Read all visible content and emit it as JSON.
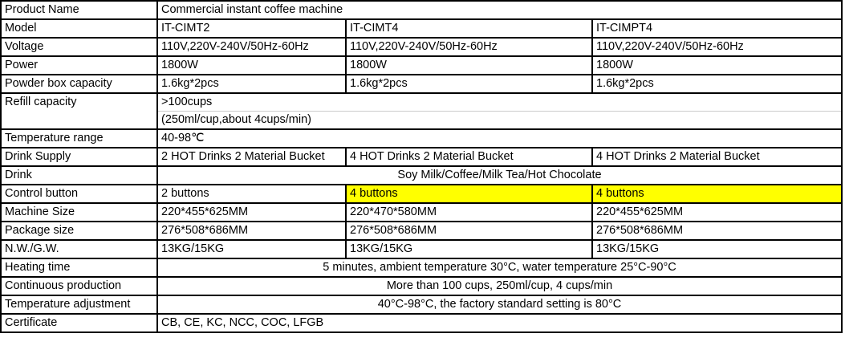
{
  "highlight_color": "#ffff00",
  "rows": [
    {
      "label": "Product Name",
      "cells": [
        {
          "text": "Commercial instant coffee machine",
          "span": 3
        }
      ]
    },
    {
      "label": "Model",
      "cells": [
        {
          "text": "IT-CIMT2"
        },
        {
          "text": "IT-CIMT4"
        },
        {
          "text": "IT-CIMPT4"
        }
      ]
    },
    {
      "label": "Voltage",
      "cells": [
        {
          "text": "110V,220V-240V/50Hz-60Hz"
        },
        {
          "text": "110V,220V-240V/50Hz-60Hz"
        },
        {
          "text": "110V,220V-240V/50Hz-60Hz"
        }
      ]
    },
    {
      "label": "Power",
      "cells": [
        {
          "text": "1800W"
        },
        {
          "text": "1800W"
        },
        {
          "text": "1800W"
        }
      ]
    },
    {
      "label": "Powder box capacity",
      "cells": [
        {
          "text": "1.6kg*2pcs"
        },
        {
          "text": "1.6kg*2pcs"
        },
        {
          "text": "1.6kg*2pcs"
        }
      ]
    },
    {
      "label": "Refill capacity",
      "cells": [
        {
          "text": ">100cups",
          "span": 3
        }
      ],
      "extra": "(250ml/cup,about 4cups/min)"
    },
    {
      "label": "Temperature range",
      "cells": [
        {
          "text": "40-98℃",
          "span": 3
        }
      ]
    },
    {
      "label": "Drink Supply",
      "cells": [
        {
          "text": "2 HOT Drinks 2 Material Bucket"
        },
        {
          "text": "4 HOT Drinks 2 Material Bucket"
        },
        {
          "text": "4 HOT Drinks 2 Material Bucket"
        }
      ]
    },
    {
      "label": "Drink",
      "cells": [
        {
          "text": "Soy Milk/Coffee/Milk Tea/Hot Chocolate",
          "span": 3,
          "center": true
        }
      ]
    },
    {
      "label": "Control button",
      "cells": [
        {
          "text": "2 buttons"
        },
        {
          "text": "4 buttons",
          "highlight": true
        },
        {
          "text": "4 buttons",
          "highlight": true
        }
      ]
    },
    {
      "label": "Machine Size",
      "cells": [
        {
          "text": "220*455*625MM"
        },
        {
          "text": "220*470*580MM"
        },
        {
          "text": "220*455*625MM"
        }
      ]
    },
    {
      "label": "Package size",
      "cells": [
        {
          "text": "276*508*686MM"
        },
        {
          "text": "276*508*686MM"
        },
        {
          "text": "276*508*686MM"
        }
      ]
    },
    {
      "label": "N.W./G.W.",
      "cells": [
        {
          "text": "13KG/15KG"
        },
        {
          "text": "13KG/15KG"
        },
        {
          "text": "13KG/15KG"
        }
      ]
    },
    {
      "label": "Heating time",
      "cells": [
        {
          "text": "5 minutes, ambient temperature 30°C, water temperature 25°C-90°C",
          "span": 3,
          "center": true
        }
      ]
    },
    {
      "label": "Continuous production",
      "cells": [
        {
          "text": "More than 100 cups, 250ml/cup, 4 cups/min",
          "span": 3,
          "center": true
        }
      ]
    },
    {
      "label": "Temperature adjustment",
      "cells": [
        {
          "text": "40°C-98°C, the factory standard setting is 80°C",
          "span": 3,
          "center": true
        }
      ]
    },
    {
      "label": "Certificate",
      "cells": [
        {
          "text": "CB, CE, KC, NCC, COC, LFGB",
          "span": 3
        }
      ]
    }
  ]
}
